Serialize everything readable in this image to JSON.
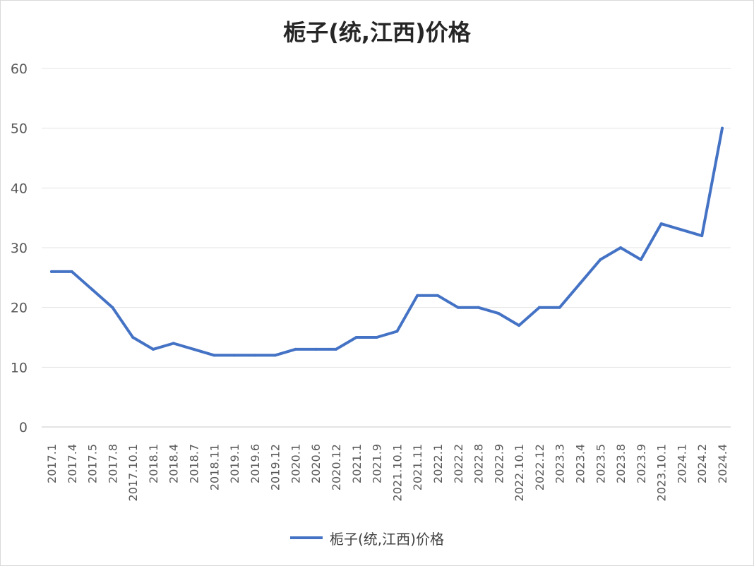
{
  "chart_data": {
    "type": "line",
    "title": "栀子(统,江西)价格",
    "xlabel": "",
    "ylabel": "",
    "ylim": [
      0,
      60
    ],
    "yticks": [
      0,
      10,
      20,
      30,
      40,
      50,
      60
    ],
    "grid": true,
    "legend_position": "bottom",
    "color": "#4472c4",
    "categories": [
      "2017.1",
      "2017.4",
      "2017.5",
      "2017.8",
      "2017.10.1",
      "2018.1",
      "2018.4",
      "2018.7",
      "2018.11",
      "2019.1",
      "2019.6",
      "2019.12",
      "2020.1",
      "2020.6",
      "2020.12",
      "2021.1",
      "2021.9",
      "2021.10.1",
      "2021.11",
      "2022.1",
      "2022.2",
      "2022.8",
      "2022.9",
      "2022.10.1",
      "2022.12",
      "2023.3",
      "2023.4",
      "2023.5",
      "2023.8",
      "2023.9",
      "2023.10.1",
      "2024.1",
      "2024.2",
      "2024.4"
    ],
    "series": [
      {
        "name": "栀子(统,江西)价格",
        "values": [
          26,
          26,
          23,
          20,
          15,
          13,
          14,
          13,
          12,
          12,
          12,
          12,
          13,
          13,
          13,
          15,
          15,
          16,
          22,
          22,
          20,
          20,
          19,
          17,
          20,
          20,
          24,
          28,
          30,
          28,
          34,
          33,
          32,
          50
        ]
      }
    ]
  }
}
